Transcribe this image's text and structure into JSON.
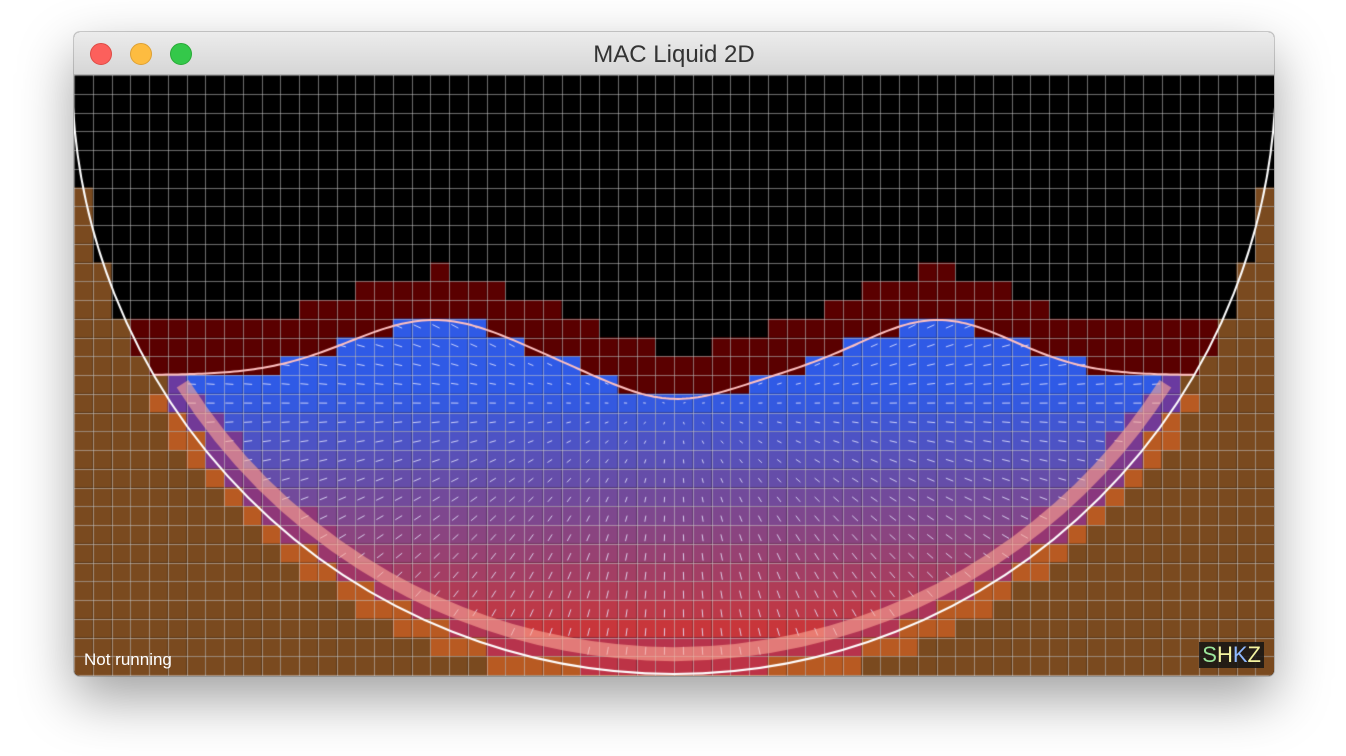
{
  "window": {
    "title": "MAC Liquid 2D"
  },
  "status": {
    "text": "Not running"
  },
  "key_legend": [
    {
      "letter": "S",
      "color": "#9be69b"
    },
    {
      "letter": "H",
      "color": "#f4f4a0"
    },
    {
      "letter": "K",
      "color": "#8fb9ff"
    },
    {
      "letter": "Z",
      "color": "#f4f4a0"
    }
  ],
  "colors": {
    "solid": "#7a4a1f",
    "solid_edge": "#b85a22",
    "air": "#000000",
    "air_near_liquid": "#5a0000",
    "liquid_top": "#2f5ae6",
    "liquid_bottom": "#e03020",
    "grid_line": "#a0a0a0",
    "container_outline": "#ffffff",
    "surface_outline": "#ffc0c0"
  }
}
